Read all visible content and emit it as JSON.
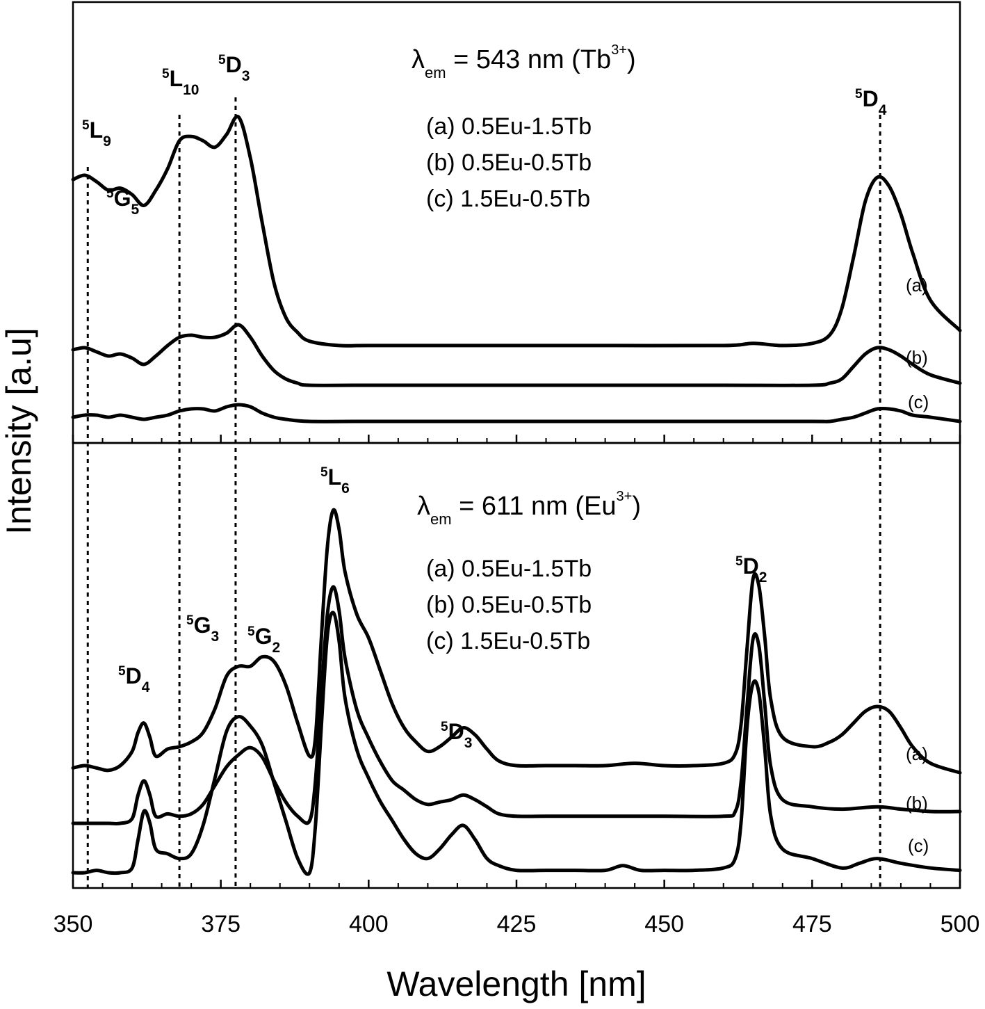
{
  "chart_data": {
    "type": "line",
    "xlabel": "Wavelength [nm]",
    "ylabel": "Intensity [a.u]",
    "xlim": [
      350,
      500
    ],
    "x_ticks": [
      "350",
      "375",
      "400",
      "425",
      "450",
      "475",
      "500"
    ],
    "y_ticks_shown": false,
    "grid": false,
    "guide_lines_nm": [
      352.5,
      368,
      377.5,
      486.5
    ],
    "panels": [
      {
        "panel": "top",
        "title_parts": {
          "lambda": "λ",
          "sub": "em",
          "main": " = 543 nm (Tb",
          "sup": "3+",
          "close": ")"
        },
        "legend_entries": [
          "(a) 0.5Eu-1.5Tb",
          "(b) 0.5Eu-0.5Tb",
          "(c) 1.5Eu-0.5Tb"
        ],
        "transitions": [
          {
            "sup": "5",
            "main": "L",
            "sub": "9"
          },
          {
            "sup": "5",
            "main": "G",
            "sub": "5"
          },
          {
            "sup": "5",
            "main": "L",
            "sub": "10"
          },
          {
            "sup": "5",
            "main": "D",
            "sub": "3"
          },
          {
            "sup": "5",
            "main": "D",
            "sub": "4"
          }
        ],
        "series": [
          {
            "name": "(a)",
            "x": [
              350,
              352,
              354,
              356,
              358,
              360,
              362,
              364,
              366,
              368,
              370,
              372,
              374,
              376,
              378,
              380,
              382,
              384,
              386,
              388,
              390,
              395,
              400,
              420,
              440,
              460,
              465,
              470,
              475,
              478,
              480,
              482,
              484,
              486,
              488,
              490,
              492,
              495,
              500
            ],
            "y": [
              78,
              80,
              77,
              73,
              74,
              71,
              66,
              73,
              83,
              96,
              98,
              96,
              93,
              99,
              107,
              88,
              58,
              30,
              14,
              7,
              3,
              1,
              1,
              1,
              1,
              1,
              2,
              1,
              2,
              6,
              18,
              42,
              68,
              79,
              75,
              62,
              44,
              22,
              8
            ]
          },
          {
            "name": "(b)",
            "x": [
              350,
              352,
              354,
              356,
              358,
              360,
              362,
              364,
              366,
              368,
              370,
              372,
              374,
              376,
              378,
              380,
              382,
              384,
              386,
              388,
              390,
              400,
              420,
              440,
              460,
              475,
              478,
              480,
              482,
              484,
              486,
              488,
              490,
              492,
              495,
              500
            ],
            "y": [
              17,
              18,
              16,
              14,
              15,
              13,
              10,
              14,
              19,
              23,
              24,
              23,
              23,
              25,
              29,
              23,
              14,
              7,
              3,
              1,
              0,
              0,
              0,
              0,
              0,
              0,
              1,
              3,
              9,
              15,
              18,
              17,
              14,
              10,
              5,
              1
            ]
          },
          {
            "name": "(c)",
            "x": [
              350,
              352,
              354,
              356,
              358,
              360,
              362,
              364,
              366,
              368,
              370,
              372,
              374,
              376,
              378,
              380,
              382,
              384,
              386,
              390,
              400,
              420,
              440,
              460,
              475,
              478,
              480,
              482,
              484,
              486,
              488,
              490,
              492,
              495,
              500
            ],
            "y": [
              2,
              3,
              3,
              2,
              3,
              2,
              1,
              2,
              3,
              5,
              6,
              6,
              5,
              7,
              8,
              7,
              4,
              2,
              1,
              0,
              0,
              0,
              0,
              0,
              0,
              0,
              1,
              2,
              4,
              6,
              6,
              5,
              3,
              2,
              0
            ]
          }
        ]
      },
      {
        "panel": "bottom",
        "title_parts": {
          "lambda": "λ",
          "sub": "em",
          "main": " = 611 nm (Eu",
          "sup": "3+",
          "close": ")"
        },
        "legend_entries": [
          "(a) 0.5Eu-1.5Tb",
          "(b) 0.5Eu-0.5Tb",
          "(c) 1.5Eu-0.5Tb"
        ],
        "transitions": [
          {
            "sup": "5",
            "main": "D",
            "sub": "4"
          },
          {
            "sup": "5",
            "main": "G",
            "sub": "3"
          },
          {
            "sup": "5",
            "main": "G",
            "sub": "2"
          },
          {
            "sup": "5",
            "main": "L",
            "sub": "6"
          },
          {
            "sup": "5",
            "main": "D",
            "sub": "3"
          },
          {
            "sup": "5",
            "main": "D",
            "sub": "2"
          }
        ],
        "series": [
          {
            "name": "(a)",
            "x": [
              350,
              352,
              354,
              356,
              358,
              360,
              361,
              362,
              363,
              364,
              366,
              368,
              370,
              372,
              374,
              376,
              378,
              380,
              382,
              384,
              386,
              388,
              390,
              391,
              392,
              393,
              394,
              395,
              396,
              398,
              400,
              402,
              404,
              406,
              408,
              410,
              412,
              414,
              416,
              418,
              420,
              422,
              425,
              430,
              435,
              440,
              445,
              450,
              455,
              460,
              462,
              463,
              464,
              465,
              466,
              467,
              468,
              470,
              475,
              478,
              480,
              482,
              484,
              486,
              488,
              490,
              492,
              495,
              500
            ],
            "y": [
              9,
              10,
              9,
              8,
              10,
              16,
              24,
              28,
              22,
              14,
              17,
              18,
              20,
              24,
              34,
              48,
              52,
              52,
              56,
              54,
              44,
              28,
              14,
              22,
              64,
              102,
              118,
              110,
              92,
              74,
              64,
              50,
              36,
              26,
              20,
              16,
              18,
              22,
              26,
              23,
              17,
              12,
              10,
              10,
              10,
              10,
              11,
              10,
              10,
              11,
              15,
              28,
              60,
              89,
              86,
              64,
              38,
              22,
              18,
              20,
              23,
              28,
              33,
              35,
              33,
              26,
              18,
              11,
              7
            ]
          },
          {
            "name": "(b)",
            "x": [
              350,
              352,
              354,
              356,
              358,
              360,
              361,
              362,
              363,
              364,
              366,
              368,
              370,
              372,
              374,
              376,
              378,
              380,
              382,
              384,
              386,
              388,
              390,
              391,
              392,
              393,
              394,
              395,
              396,
              398,
              400,
              402,
              404,
              406,
              408,
              410,
              412,
              414,
              416,
              418,
              420,
              422,
              425,
              430,
              440,
              450,
              460,
              462,
              463,
              464,
              465,
              466,
              467,
              468,
              470,
              475,
              480,
              486,
              490,
              495,
              500
            ],
            "y": [
              0,
              0,
              0,
              0,
              0,
              2,
              12,
              18,
              12,
              3,
              4,
              3,
              4,
              8,
              16,
              24,
              29,
              32,
              28,
              18,
              9,
              3,
              1,
              18,
              55,
              88,
              100,
              90,
              70,
              48,
              36,
              26,
              18,
              14,
              10,
              8,
              9,
              10,
              12,
              10,
              7,
              4,
              3,
              3,
              3,
              3,
              3,
              5,
              18,
              50,
              78,
              75,
              50,
              24,
              10,
              7,
              6,
              7,
              6,
              5,
              5
            ]
          },
          {
            "name": "(c)",
            "x": [
              350,
              352,
              354,
              356,
              358,
              360,
              361,
              362,
              363,
              364,
              366,
              368,
              370,
              372,
              374,
              376,
              378,
              380,
              382,
              384,
              386,
              388,
              390,
              391,
              392,
              393,
              394,
              395,
              396,
              398,
              400,
              402,
              404,
              406,
              408,
              410,
              412,
              414,
              416,
              418,
              420,
              422,
              425,
              430,
              435,
              440,
              443,
              446,
              450,
              455,
              460,
              462,
              463,
              464,
              465,
              466,
              467,
              468,
              470,
              475,
              480,
              483,
              486,
              490,
              495,
              500
            ],
            "y": [
              0,
              0,
              1,
              0,
              0,
              2,
              14,
              26,
              21,
              10,
              8,
              6,
              8,
              20,
              40,
              60,
              66,
              62,
              54,
              38,
              22,
              6,
              0,
              20,
              62,
              100,
              110,
              98,
              74,
              52,
              40,
              30,
              22,
              14,
              8,
              6,
              10,
              16,
              20,
              14,
              6,
              3,
              1,
              1,
              1,
              1,
              3,
              1,
              1,
              1,
              2,
              6,
              22,
              62,
              80,
              76,
              52,
              24,
              10,
              6,
              2,
              4,
              6,
              4,
              2,
              1
            ]
          }
        ]
      }
    ]
  }
}
